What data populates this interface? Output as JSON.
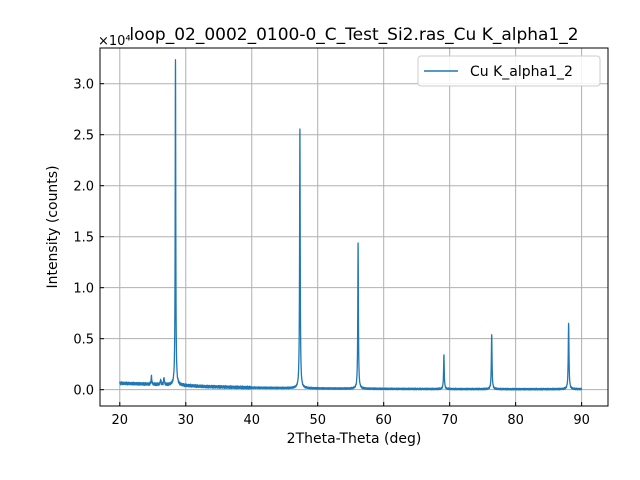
{
  "chart_data": {
    "type": "line",
    "title": "loop_02_0002_0100-0_C_Test_Si2.ras_Cu K_alpha1_2",
    "xlabel": "2Theta-Theta (deg)",
    "ylabel": "Intensity (counts)",
    "y_offset_label": "×10⁴",
    "xlim": [
      17,
      94
    ],
    "ylim": [
      -0.16,
      3.35
    ],
    "y_scale_factor": 10000,
    "xticks": [
      20,
      30,
      40,
      50,
      60,
      70,
      80,
      90
    ],
    "yticks": [
      0.0,
      0.5,
      1.0,
      1.5,
      2.0,
      2.5,
      3.0
    ],
    "ytick_labels": [
      "0.0",
      "0.5",
      "1.0",
      "1.5",
      "2.0",
      "2.5",
      "3.0"
    ],
    "grid": true,
    "legend": {
      "position": "top-right"
    },
    "color": "#1f77b4",
    "series": [
      {
        "name": "Cu K_alpha1_2",
        "x_start": 20,
        "x_end": 90,
        "baseline": [
          [
            20,
            0.063
          ],
          [
            24,
            0.055
          ],
          [
            27,
            0.048
          ],
          [
            30,
            0.04
          ],
          [
            33,
            0.03
          ],
          [
            40,
            0.02
          ],
          [
            50,
            0.012
          ],
          [
            60,
            0.008
          ],
          [
            70,
            0.006
          ],
          [
            80,
            0.005
          ],
          [
            90,
            0.005
          ]
        ],
        "peaks": [
          {
            "x": 24.8,
            "y": 0.08,
            "w": 0.06
          },
          {
            "x": 26.2,
            "y": 0.05,
            "w": 0.06
          },
          {
            "x": 26.7,
            "y": 0.07,
            "w": 0.06
          },
          {
            "x": 28.44,
            "y": 3.19,
            "w": 0.05
          },
          {
            "x": 47.3,
            "y": 2.54,
            "w": 0.055
          },
          {
            "x": 56.12,
            "y": 1.42,
            "w": 0.055
          },
          {
            "x": 69.13,
            "y": 0.33,
            "w": 0.06
          },
          {
            "x": 76.37,
            "y": 0.54,
            "w": 0.06
          },
          {
            "x": 88.03,
            "y": 0.65,
            "w": 0.065
          }
        ]
      }
    ]
  }
}
